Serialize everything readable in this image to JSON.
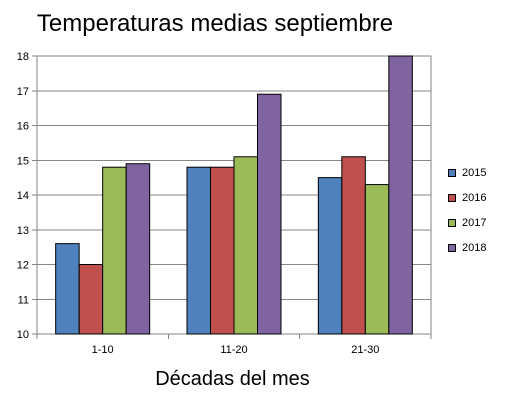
{
  "chart_data": {
    "type": "bar",
    "title": "Temperaturas medias septiembre",
    "xlabel": "Décadas del mes",
    "ylabel": "",
    "categories": [
      "1-10",
      "11-20",
      "21-30"
    ],
    "ylim": [
      10,
      18
    ],
    "yticks": [
      "10",
      "11",
      "12",
      "13",
      "14",
      "15",
      "16",
      "17",
      "18"
    ],
    "grid": true,
    "legend_position": "right",
    "series": [
      {
        "name": "2015",
        "color": "#4f81bd",
        "values": [
          12.6,
          14.8,
          14.5
        ]
      },
      {
        "name": "2016",
        "color": "#c0504d",
        "values": [
          12.0,
          14.8,
          15.1
        ]
      },
      {
        "name": "2017",
        "color": "#9bbb59",
        "values": [
          14.8,
          15.1,
          14.3
        ]
      },
      {
        "name": "2018",
        "color": "#8064a2",
        "values": [
          14.9,
          16.9,
          18.0
        ]
      }
    ]
  }
}
